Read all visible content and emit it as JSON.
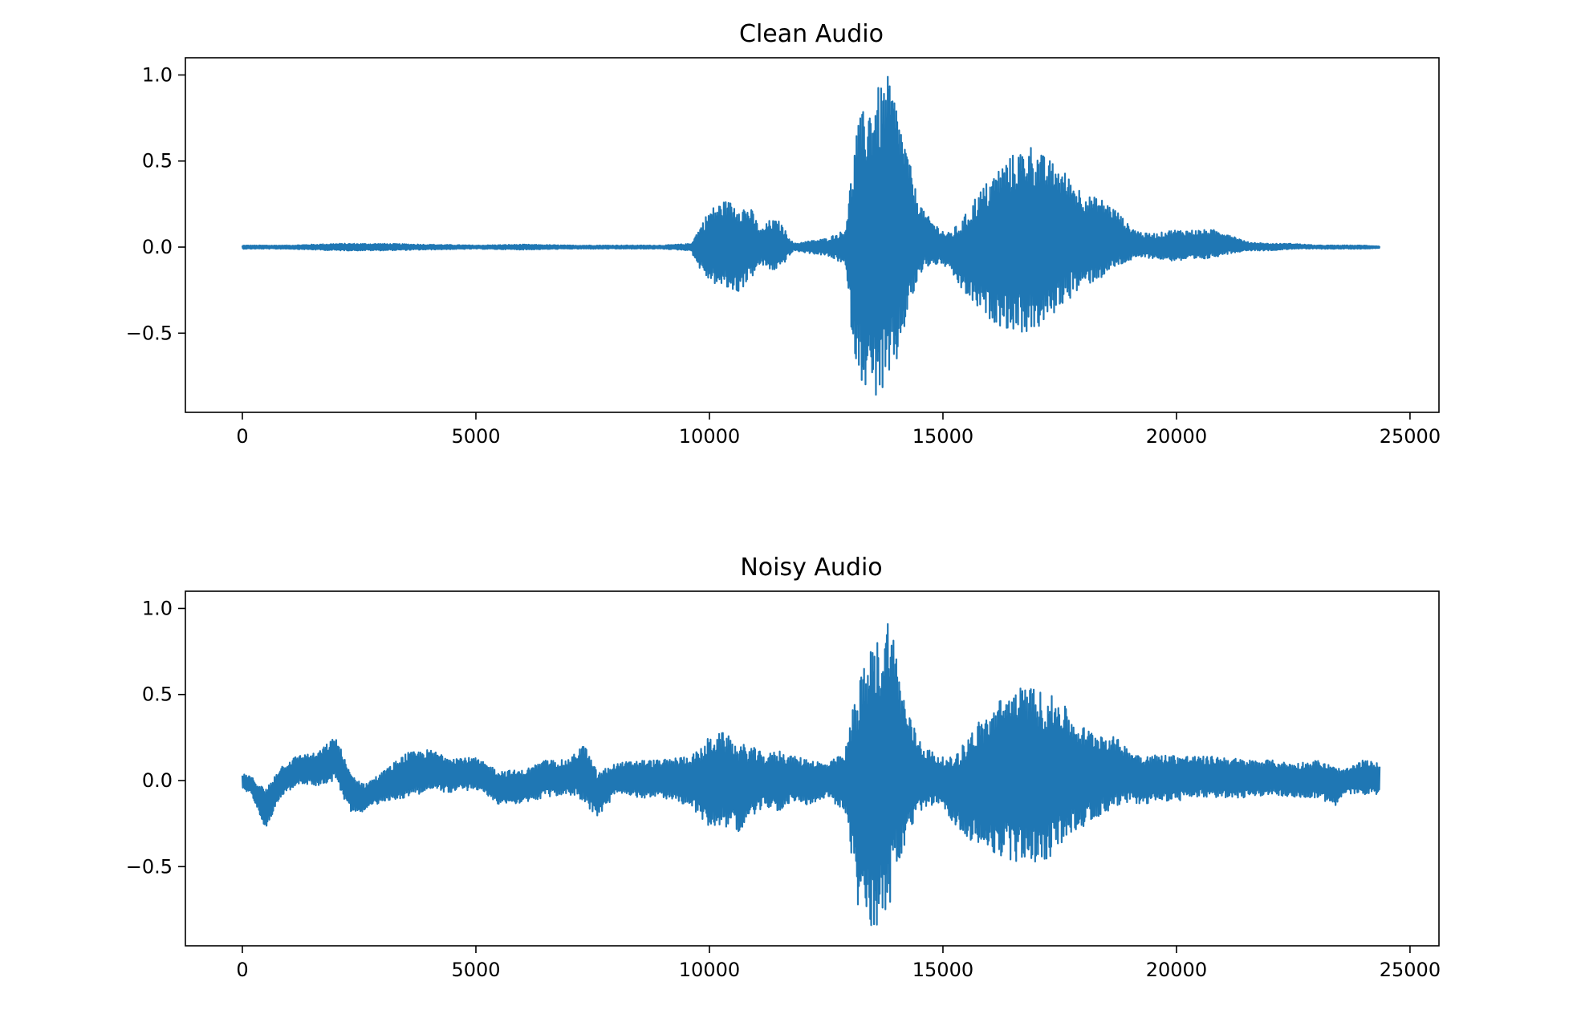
{
  "chart_data": [
    {
      "type": "line",
      "title": "Clean Audio",
      "xlabel": "",
      "ylabel": "",
      "xlim": [
        -1220,
        25620
      ],
      "ylim": [
        -0.96,
        1.1
      ],
      "xticks": [
        0,
        5000,
        10000,
        15000,
        20000,
        25000
      ],
      "xtick_labels": [
        "0",
        "5000",
        "10000",
        "15000",
        "20000",
        "25000"
      ],
      "yticks": [
        1.0,
        0.5,
        0.0,
        -0.5
      ],
      "ytick_labels": [
        "1.0",
        "0.5",
        "0.0",
        "−0.5"
      ],
      "grid": false,
      "color": "#1f77b4",
      "series": [
        {
          "envelope_x": [
            0,
            1000,
            2000,
            3000,
            4000,
            5000,
            6000,
            7000,
            8000,
            9000,
            9600,
            9800,
            10000,
            10300,
            10600,
            10900,
            11100,
            11300,
            11500,
            11800,
            12000,
            12500,
            12900,
            13050,
            13150,
            13300,
            13500,
            13700,
            13850,
            14000,
            14200,
            14400,
            14600,
            14900,
            15100,
            15400,
            15700,
            16000,
            16300,
            16600,
            16900,
            17200,
            17500,
            17800,
            18100,
            18400,
            18700,
            19000,
            19300,
            19600,
            19900,
            20200,
            20500,
            20800,
            21100,
            21500,
            22000,
            22500,
            23000,
            23500,
            24000,
            24350
          ],
          "envelope_max": [
            0.01,
            0.01,
            0.02,
            0.02,
            0.015,
            0.01,
            0.015,
            0.01,
            0.01,
            0.01,
            0.02,
            0.12,
            0.22,
            0.27,
            0.26,
            0.22,
            0.1,
            0.16,
            0.15,
            0.02,
            0.03,
            0.05,
            0.1,
            0.45,
            0.7,
            0.8,
            0.9,
            0.95,
            1.0,
            0.85,
            0.6,
            0.35,
            0.2,
            0.12,
            0.08,
            0.15,
            0.3,
            0.4,
            0.5,
            0.56,
            0.6,
            0.52,
            0.47,
            0.38,
            0.3,
            0.28,
            0.22,
            0.12,
            0.08,
            0.08,
            0.1,
            0.1,
            0.1,
            0.1,
            0.08,
            0.03,
            0.02,
            0.02,
            0.01,
            0.01,
            0.01,
            0.005
          ],
          "envelope_min": [
            -0.01,
            -0.01,
            -0.02,
            -0.02,
            -0.015,
            -0.01,
            -0.015,
            -0.01,
            -0.01,
            -0.01,
            -0.02,
            -0.13,
            -0.2,
            -0.24,
            -0.27,
            -0.18,
            -0.1,
            -0.14,
            -0.13,
            -0.02,
            -0.03,
            -0.05,
            -0.1,
            -0.5,
            -0.7,
            -0.8,
            -0.88,
            -0.86,
            -0.84,
            -0.7,
            -0.45,
            -0.25,
            -0.12,
            -0.1,
            -0.12,
            -0.25,
            -0.35,
            -0.42,
            -0.47,
            -0.5,
            -0.5,
            -0.45,
            -0.35,
            -0.28,
            -0.22,
            -0.18,
            -0.12,
            -0.08,
            -0.06,
            -0.07,
            -0.08,
            -0.08,
            -0.08,
            -0.06,
            -0.04,
            -0.02,
            -0.02,
            -0.01,
            -0.01,
            -0.01,
            -0.01,
            -0.005
          ]
        }
      ]
    },
    {
      "type": "line",
      "title": "Noisy Audio",
      "xlabel": "",
      "ylabel": "",
      "xlim": [
        -1220,
        25620
      ],
      "ylim": [
        -0.96,
        1.1
      ],
      "xticks": [
        0,
        5000,
        10000,
        15000,
        20000,
        25000
      ],
      "xtick_labels": [
        "0",
        "5000",
        "10000",
        "15000",
        "20000",
        "25000"
      ],
      "yticks": [
        1.0,
        0.5,
        0.0,
        -0.5
      ],
      "ytick_labels": [
        "1.0",
        "0.5",
        "0.0",
        "−0.5"
      ],
      "grid": false,
      "color": "#1f77b4",
      "series": [
        {
          "envelope_x": [
            0,
            200,
            500,
            800,
            1200,
            1600,
            2000,
            2300,
            2600,
            3000,
            3500,
            4000,
            4500,
            5000,
            5500,
            6000,
            6500,
            7000,
            7300,
            7600,
            8000,
            8500,
            9000,
            9600,
            9800,
            10000,
            10300,
            10600,
            10900,
            11200,
            11500,
            11800,
            12100,
            12500,
            12900,
            13050,
            13150,
            13300,
            13500,
            13700,
            13850,
            14000,
            14200,
            14400,
            14600,
            14900,
            15100,
            15400,
            15700,
            16000,
            16300,
            16600,
            16900,
            17200,
            17500,
            17800,
            18100,
            18400,
            18700,
            19000,
            19300,
            19600,
            20000,
            20500,
            21000,
            21500,
            22000,
            22500,
            23000,
            23400,
            23600,
            24000,
            24350
          ],
          "envelope_max": [
            0.04,
            0.02,
            -0.05,
            0.08,
            0.15,
            0.16,
            0.26,
            0.05,
            -0.02,
            0.05,
            0.16,
            0.18,
            0.14,
            0.13,
            0.06,
            0.06,
            0.12,
            0.12,
            0.22,
            0.05,
            0.1,
            0.12,
            0.12,
            0.15,
            0.18,
            0.26,
            0.28,
            0.22,
            0.2,
            0.15,
            0.18,
            0.14,
            0.13,
            0.1,
            0.16,
            0.4,
            0.55,
            0.65,
            0.8,
            0.85,
            1.0,
            0.75,
            0.45,
            0.3,
            0.2,
            0.15,
            0.12,
            0.2,
            0.33,
            0.4,
            0.5,
            0.54,
            0.55,
            0.5,
            0.48,
            0.35,
            0.3,
            0.28,
            0.25,
            0.18,
            0.15,
            0.15,
            0.15,
            0.14,
            0.14,
            0.12,
            0.12,
            0.1,
            0.12,
            0.08,
            0.06,
            0.12,
            0.1
          ],
          "envelope_min": [
            -0.05,
            -0.08,
            -0.28,
            -0.1,
            -0.02,
            -0.03,
            0.0,
            -0.18,
            -0.18,
            -0.12,
            -0.1,
            -0.06,
            -0.07,
            -0.05,
            -0.14,
            -0.13,
            -0.1,
            -0.08,
            -0.12,
            -0.22,
            -0.08,
            -0.1,
            -0.1,
            -0.15,
            -0.22,
            -0.27,
            -0.26,
            -0.3,
            -0.22,
            -0.15,
            -0.18,
            -0.12,
            -0.14,
            -0.1,
            -0.18,
            -0.45,
            -0.72,
            -0.82,
            -0.88,
            -0.8,
            -0.75,
            -0.55,
            -0.4,
            -0.25,
            -0.15,
            -0.15,
            -0.2,
            -0.3,
            -0.37,
            -0.42,
            -0.45,
            -0.48,
            -0.47,
            -0.48,
            -0.38,
            -0.3,
            -0.25,
            -0.2,
            -0.15,
            -0.12,
            -0.15,
            -0.12,
            -0.12,
            -0.1,
            -0.1,
            -0.1,
            -0.08,
            -0.1,
            -0.1,
            -0.15,
            -0.08,
            -0.08,
            -0.08
          ]
        }
      ]
    }
  ]
}
